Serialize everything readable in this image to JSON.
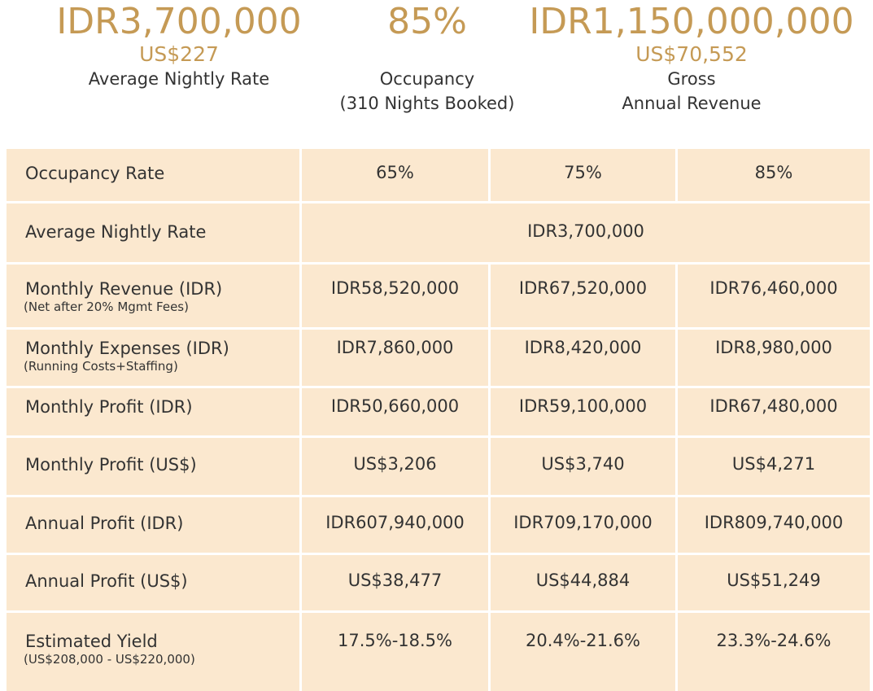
{
  "stats": [
    {
      "value": "IDR3,700,000",
      "usd": "US$227",
      "label_line1": "Average Nightly Rate",
      "label_line2": ""
    },
    {
      "value": "85%",
      "usd": "",
      "label_line1": "Occupancy",
      "label_line2": "(310 Nights Booked)"
    },
    {
      "value": "IDR1,150,000,000",
      "usd": "US$70,552",
      "label_line1": "Gross",
      "label_line2": "Annual Revenue"
    }
  ],
  "table": {
    "rows": [
      {
        "label": "Occupancy Rate",
        "sub": "",
        "values": [
          "65%",
          "75%",
          "85%"
        ]
      },
      {
        "label": "Average Nightly Rate",
        "sub": "",
        "merged_value": "IDR3,700,000"
      },
      {
        "label": "Monthly Revenue (IDR)",
        "sub": "(Net after 20% Mgmt Fees)",
        "values": [
          "IDR58,520,000",
          "IDR67,520,000",
          "IDR76,460,000"
        ]
      },
      {
        "label": "Monthly Expenses (IDR)",
        "sub": "(Running Costs+Staffing)",
        "values": [
          "IDR7,860,000",
          "IDR8,420,000",
          "IDR8,980,000"
        ]
      },
      {
        "label": "Monthly Profit (IDR)",
        "sub": "",
        "values": [
          "IDR50,660,000",
          "IDR59,100,000",
          "IDR67,480,000"
        ]
      },
      {
        "label": "Monthly Profit (US$)",
        "sub": "",
        "values": [
          "US$3,206",
          "US$3,740",
          "US$4,271"
        ]
      },
      {
        "label": "Annual Profit (IDR)",
        "sub": "",
        "values": [
          "IDR607,940,000",
          "IDR709,170,000",
          "IDR809,740,000"
        ]
      },
      {
        "label": "Annual Profit (US$)",
        "sub": "",
        "values": [
          "US$38,477",
          "US$44,884",
          "US$51,249"
        ]
      },
      {
        "label": "Estimated Yield",
        "sub": "(US$208,000 - US$220,000)",
        "values": [
          "17.5%-18.5%",
          "20.4%-21.6%",
          "23.3%-24.6%"
        ]
      }
    ]
  }
}
